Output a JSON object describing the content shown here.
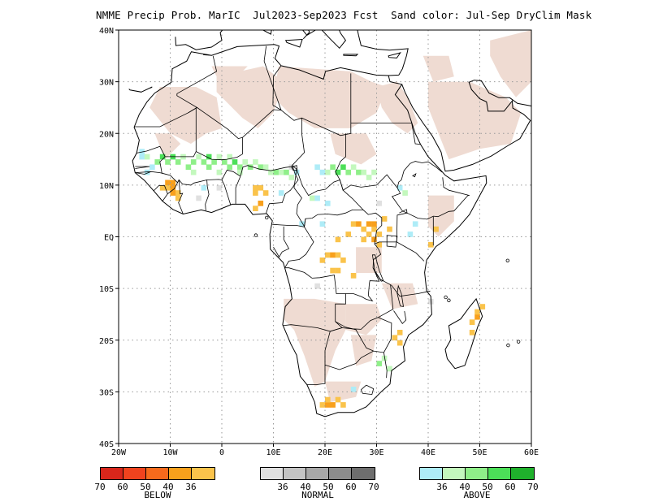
{
  "title": "NMME Precip Prob. MarIC  Jul2023-Sep2023 Fcst  Sand color: Jul-Sep DryClim Mask",
  "colors": {
    "sand": "#efdbd2",
    "coast": "#000000",
    "grid": "#9a9a9a"
  },
  "axes": {
    "lat_labels": [
      "40N",
      "30N",
      "20N",
      "10N",
      "EQ",
      "10S",
      "20S",
      "30S",
      "40S"
    ],
    "lon_labels": [
      "20W",
      "10W",
      "0",
      "10E",
      "20E",
      "30E",
      "40E",
      "50E",
      "60E"
    ],
    "lat_range": [
      -40,
      40
    ],
    "lon_range": [
      -20,
      60
    ]
  },
  "legend": {
    "below": {
      "label": "BELOW",
      "colors": [
        "#d8261b",
        "#f0431e",
        "#f66a1c",
        "#f8a01c",
        "#fac34b"
      ],
      "ticks": [
        "70",
        "60",
        "50",
        "40",
        "36"
      ]
    },
    "normal": {
      "label": "NORMAL",
      "colors": [
        "#e0e0e0",
        "#c4c4c4",
        "#a8a8a8",
        "#8c8c8c",
        "#6e6e6e"
      ],
      "ticks": [
        "36",
        "40",
        "50",
        "60",
        "70"
      ]
    },
    "above": {
      "label": "ABOVE",
      "colors": [
        "#aeecf7",
        "#c3f8bd",
        "#8fef89",
        "#4cdf58",
        "#1fb12c"
      ],
      "ticks": [
        "36",
        "40",
        "50",
        "60",
        "70"
      ]
    }
  }
}
